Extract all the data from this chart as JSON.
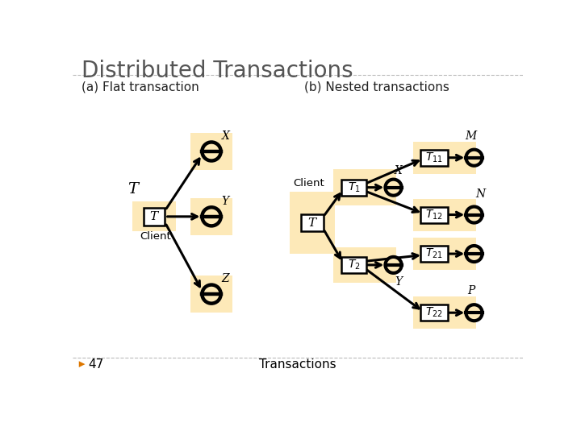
{
  "title": "Distributed Transactions",
  "subtitle_a": "(a) Flat transaction",
  "subtitle_b": "(b) Nested transactions",
  "footer": "Transactions",
  "page_num": "47",
  "bg_color": "#ffffff",
  "box_bg": "#fde9b8",
  "node_bg": "#ffffff",
  "line_color": "#000000",
  "title_color": "#555555",
  "separator_color": "#bbbbbb",
  "title_fontsize": 20,
  "subtitle_fontsize": 11,
  "label_fontsize": 10,
  "footer_fontsize": 11
}
